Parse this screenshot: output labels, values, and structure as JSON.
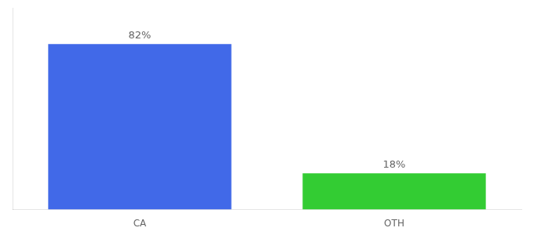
{
  "chart_data": {
    "type": "bar",
    "categories": [
      "CA",
      "OTH"
    ],
    "values": [
      82,
      18
    ],
    "colors": [
      "#4169e8",
      "#33cc33"
    ],
    "value_labels": [
      "82%",
      "18%"
    ],
    "data_labels": true,
    "ylim": [
      0,
      100
    ],
    "grid": false,
    "tick_labels": "x"
  }
}
